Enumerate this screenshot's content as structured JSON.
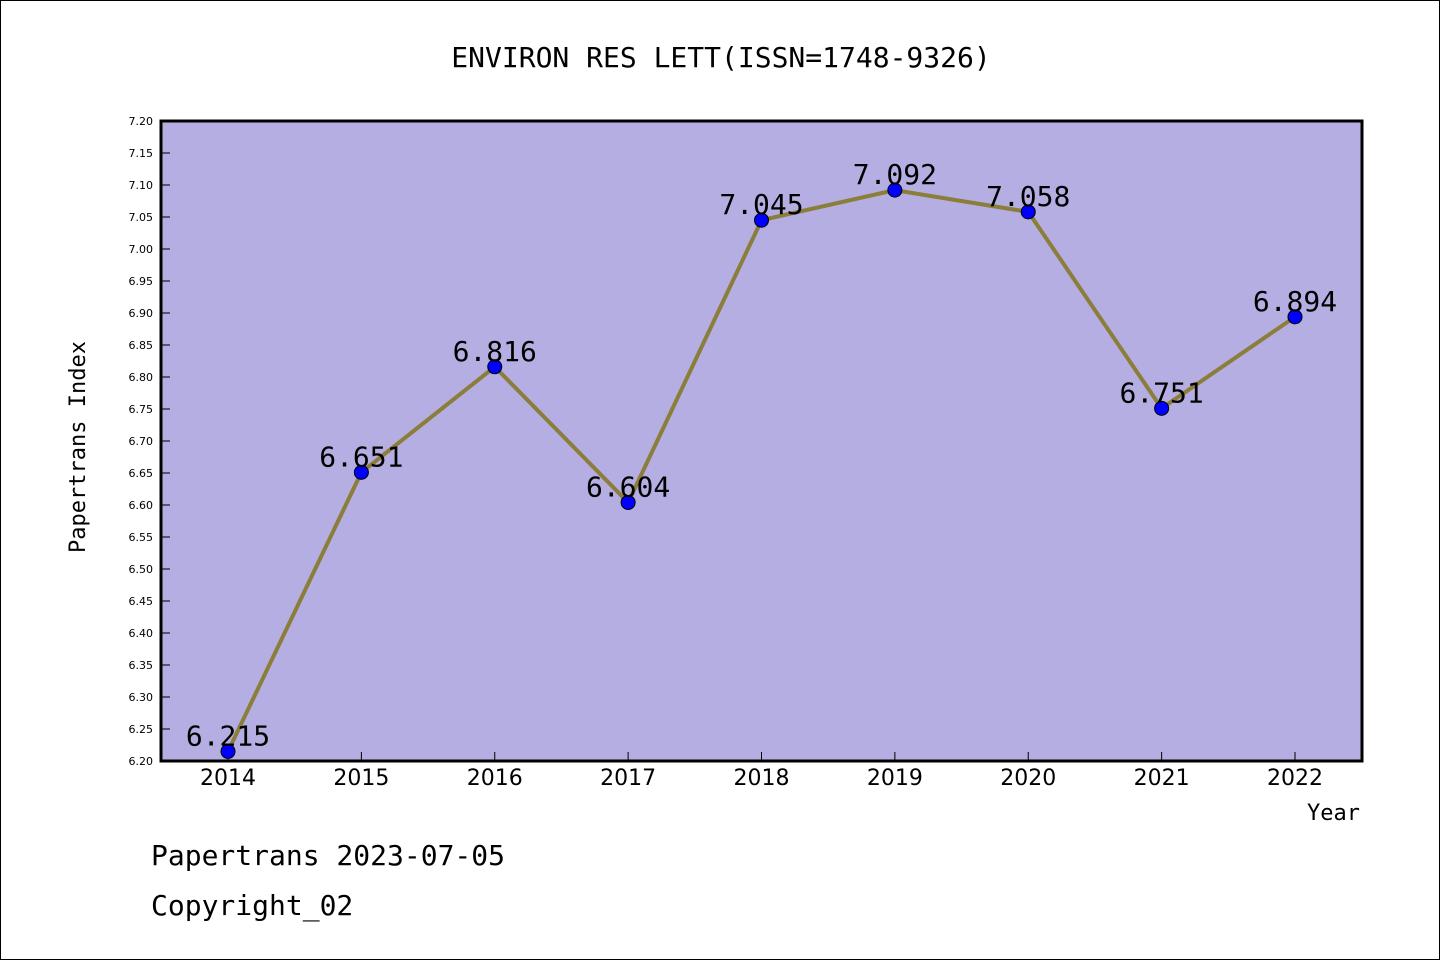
{
  "chart_data": {
    "type": "line",
    "title": "ENVIRON RES LETT(ISSN=1748-9326)",
    "xlabel": "Year",
    "ylabel": "Papertrans Index",
    "categories": [
      "2014",
      "2015",
      "2016",
      "2017",
      "2018",
      "2019",
      "2020",
      "2021",
      "2022"
    ],
    "series": [
      {
        "values": [
          6.215,
          6.651,
          6.816,
          6.604,
          7.045,
          7.092,
          7.058,
          6.751,
          6.894
        ],
        "labels": [
          "6.215",
          "6.651",
          "6.816",
          "6.604",
          "7.045",
          "7.092",
          "7.058",
          "6.751",
          "6.894"
        ]
      }
    ],
    "ylim": [
      6.2,
      7.2
    ],
    "yticks": [
      "6.20",
      "6.25",
      "6.30",
      "6.35",
      "6.40",
      "6.45",
      "6.50",
      "6.55",
      "6.60",
      "6.65",
      "6.70",
      "6.75",
      "6.80",
      "6.85",
      "6.90",
      "6.95",
      "7.00",
      "7.05",
      "7.10",
      "7.15",
      "7.20"
    ],
    "grid": false,
    "legend": "none",
    "colors": {
      "plot_background": "#b5aee2",
      "line": "#8b7d3a",
      "marker": "#0000ff"
    }
  },
  "footer": {
    "line1": "Papertrans 2023-07-05",
    "line2": "Copyright_02"
  }
}
